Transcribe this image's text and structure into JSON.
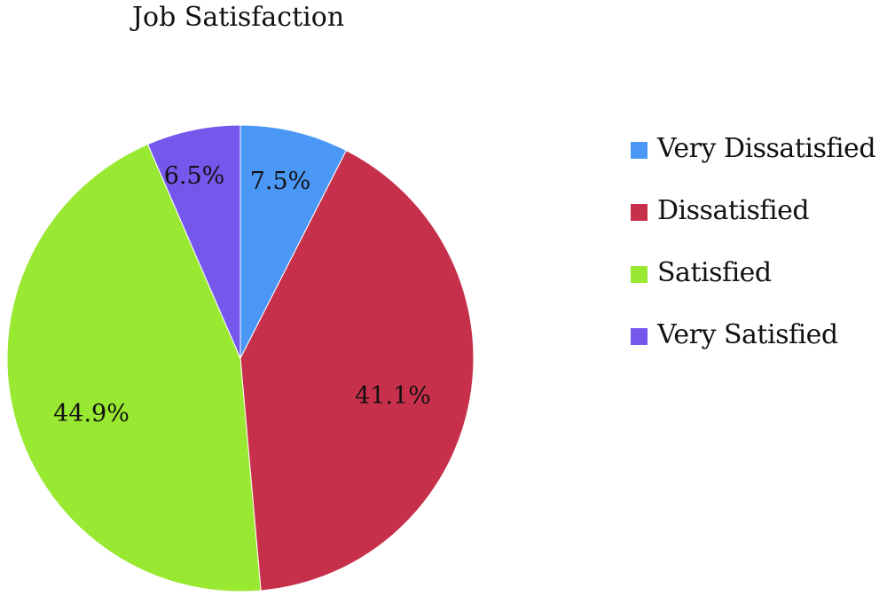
{
  "chart_data": {
    "type": "pie",
    "title": "Job Satisfaction",
    "slices": [
      {
        "label": "Very Dissatisfied",
        "value": 7.5,
        "display": "7.5%",
        "color": "#4b97f5"
      },
      {
        "label": "Dissatisfied",
        "value": 41.1,
        "display": "41.1%",
        "color": "#c7304a"
      },
      {
        "label": "Satisfied",
        "value": 44.9,
        "display": "44.9%",
        "color": "#99e831"
      },
      {
        "label": "Very Satisfied",
        "value": 6.5,
        "display": "6.5%",
        "color": "#7557ec"
      }
    ],
    "start_angle": "12 o'clock",
    "direction": "clockwise",
    "legend_position": "right"
  }
}
